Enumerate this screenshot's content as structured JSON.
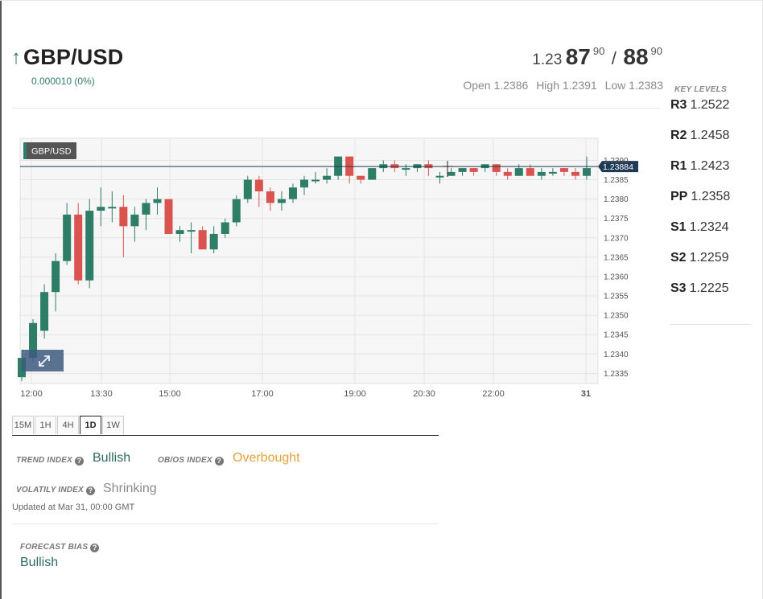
{
  "header": {
    "pair": "GBP/USD",
    "change": "0.000010 (0%)",
    "bid_prefix": "1.23",
    "bid_big": "87",
    "bid_sup": "90",
    "separator": "/",
    "ask_big": "88",
    "ask_sup": "90",
    "open": "Open 1.2386",
    "high": "High 1.2391",
    "low": "Low 1.2383"
  },
  "key_levels": {
    "title": "KEY LEVELS",
    "items": [
      {
        "name": "R3",
        "value": "1.2522"
      },
      {
        "name": "R2",
        "value": "1.2458"
      },
      {
        "name": "R1",
        "value": "1.2423"
      },
      {
        "name": "PP",
        "value": "1.2358"
      },
      {
        "name": "S1",
        "value": "1.2324"
      },
      {
        "name": "S2",
        "value": "1.2259"
      },
      {
        "name": "S3",
        "value": "1.2225"
      }
    ]
  },
  "colors": {
    "up": "#2e7d66",
    "down": "#d9534f",
    "bullish": "#2e6b5e",
    "overbought": "#e5a23b"
  },
  "chart_data": {
    "type": "candlestick",
    "title": "GBP/USD",
    "current_price_label": "1.23884",
    "current_price": 1.23884,
    "ylim": [
      1.2333,
      1.2393
    ],
    "y_ticks": [
      "1.2335",
      "1.2340",
      "1.2345",
      "1.2350",
      "1.2355",
      "1.2360",
      "1.2365",
      "1.2370",
      "1.2375",
      "1.2380",
      "1.2385",
      "1.2390"
    ],
    "x_ticks": [
      "12:00",
      "13:30",
      "15:00",
      "17:00",
      "19:00",
      "20:30",
      "22:00",
      "31"
    ],
    "grid": true,
    "candles": [
      {
        "o": 1.2334,
        "c": 1.2339,
        "h": 1.2341,
        "l": 1.2333
      },
      {
        "o": 1.2339,
        "c": 1.2348,
        "h": 1.2349,
        "l": 1.2338
      },
      {
        "o": 1.2346,
        "c": 1.2356,
        "h": 1.2358,
        "l": 1.2344
      },
      {
        "o": 1.2356,
        "c": 1.2364,
        "h": 1.2366,
        "l": 1.2351
      },
      {
        "o": 1.2364,
        "c": 1.2376,
        "h": 1.2379,
        "l": 1.2363
      },
      {
        "o": 1.2376,
        "c": 1.2359,
        "h": 1.2379,
        "l": 1.2358
      },
      {
        "o": 1.2359,
        "c": 1.2377,
        "h": 1.238,
        "l": 1.2357
      },
      {
        "o": 1.2377,
        "c": 1.2378,
        "h": 1.2383,
        "l": 1.2373
      },
      {
        "o": 1.2378,
        "c": 1.2378,
        "h": 1.2382,
        "l": 1.2374
      },
      {
        "o": 1.2378,
        "c": 1.2373,
        "h": 1.2381,
        "l": 1.2365
      },
      {
        "o": 1.2373,
        "c": 1.2376,
        "h": 1.2378,
        "l": 1.2369
      },
      {
        "o": 1.2376,
        "c": 1.2379,
        "h": 1.238,
        "l": 1.2372
      },
      {
        "o": 1.2379,
        "c": 1.238,
        "h": 1.2383,
        "l": 1.2376
      },
      {
        "o": 1.238,
        "c": 1.2371,
        "h": 1.238,
        "l": 1.2371
      },
      {
        "o": 1.2371,
        "c": 1.2372,
        "h": 1.2373,
        "l": 1.2369
      },
      {
        "o": 1.2372,
        "c": 1.2372,
        "h": 1.2374,
        "l": 1.2366
      },
      {
        "o": 1.2372,
        "c": 1.2367,
        "h": 1.2373,
        "l": 1.2367
      },
      {
        "o": 1.2367,
        "c": 1.2371,
        "h": 1.2373,
        "l": 1.2366
      },
      {
        "o": 1.2371,
        "c": 1.2374,
        "h": 1.2375,
        "l": 1.237
      },
      {
        "o": 1.2374,
        "c": 1.238,
        "h": 1.2381,
        "l": 1.2373
      },
      {
        "o": 1.238,
        "c": 1.2385,
        "h": 1.2386,
        "l": 1.2379
      },
      {
        "o": 1.2385,
        "c": 1.2382,
        "h": 1.2386,
        "l": 1.2378
      },
      {
        "o": 1.2382,
        "c": 1.2379,
        "h": 1.2383,
        "l": 1.2377
      },
      {
        "o": 1.2379,
        "c": 1.238,
        "h": 1.2382,
        "l": 1.2377
      },
      {
        "o": 1.238,
        "c": 1.2383,
        "h": 1.2384,
        "l": 1.2379
      },
      {
        "o": 1.2383,
        "c": 1.2385,
        "h": 1.2386,
        "l": 1.2381
      },
      {
        "o": 1.2385,
        "c": 1.2385,
        "h": 1.2387,
        "l": 1.2384
      },
      {
        "o": 1.2385,
        "c": 1.2386,
        "h": 1.2388,
        "l": 1.2384
      },
      {
        "o": 1.2386,
        "c": 1.2391,
        "h": 1.2391,
        "l": 1.2385
      },
      {
        "o": 1.2391,
        "c": 1.2386,
        "h": 1.2391,
        "l": 1.2384
      },
      {
        "o": 1.2386,
        "c": 1.2385,
        "h": 1.2386,
        "l": 1.2384
      },
      {
        "o": 1.2385,
        "c": 1.2388,
        "h": 1.2388,
        "l": 1.2385
      },
      {
        "o": 1.2388,
        "c": 1.2389,
        "h": 1.239,
        "l": 1.2387
      },
      {
        "o": 1.2389,
        "c": 1.2388,
        "h": 1.239,
        "l": 1.2387
      },
      {
        "o": 1.2388,
        "c": 1.2388,
        "h": 1.2389,
        "l": 1.2386
      },
      {
        "o": 1.2388,
        "c": 1.2389,
        "h": 1.2389,
        "l": 1.2387
      },
      {
        "o": 1.2389,
        "c": 1.2388,
        "h": 1.239,
        "l": 1.2386
      },
      {
        "o": 1.2386,
        "c": 1.2386,
        "h": 1.2387,
        "l": 1.2384
      },
      {
        "o": 1.2386,
        "c": 1.2387,
        "h": 1.2388,
        "l": 1.2386
      },
      {
        "o": 1.2387,
        "c": 1.2388,
        "h": 1.2388,
        "l": 1.2386
      },
      {
        "o": 1.2388,
        "c": 1.2387,
        "h": 1.2388,
        "l": 1.2386
      },
      {
        "o": 1.2388,
        "c": 1.2389,
        "h": 1.2389,
        "l": 1.2387
      },
      {
        "o": 1.2389,
        "c": 1.2387,
        "h": 1.2389,
        "l": 1.2386
      },
      {
        "o": 1.2387,
        "c": 1.2386,
        "h": 1.2388,
        "l": 1.2385
      },
      {
        "o": 1.2386,
        "c": 1.2388,
        "h": 1.2389,
        "l": 1.2386
      },
      {
        "o": 1.2388,
        "c": 1.2386,
        "h": 1.2389,
        "l": 1.2386
      },
      {
        "o": 1.2386,
        "c": 1.2387,
        "h": 1.2388,
        "l": 1.2385
      },
      {
        "o": 1.2387,
        "c": 1.2387,
        "h": 1.2388,
        "l": 1.2386
      },
      {
        "o": 1.2388,
        "c": 1.2387,
        "h": 1.2388,
        "l": 1.2386
      },
      {
        "o": 1.2387,
        "c": 1.2386,
        "h": 1.2388,
        "l": 1.2385
      },
      {
        "o": 1.2386,
        "c": 1.2388,
        "h": 1.2391,
        "l": 1.2385
      }
    ]
  },
  "timeframes": [
    "15M",
    "1H",
    "4H",
    "1D",
    "1W"
  ],
  "active_timeframe": "1D",
  "indices": {
    "trend_label": "TREND INDEX",
    "trend_value": "Bullish",
    "obos_label": "OB/OS INDEX",
    "obos_value": "Overbought",
    "volatility_label": "VOLATILY INDEX",
    "volatility_value": "Shrinking",
    "updated": "Updated at Mar 31, 00:00 GMT"
  },
  "forecast": {
    "label": "FORECAST BIAS",
    "value": "Bullish"
  }
}
